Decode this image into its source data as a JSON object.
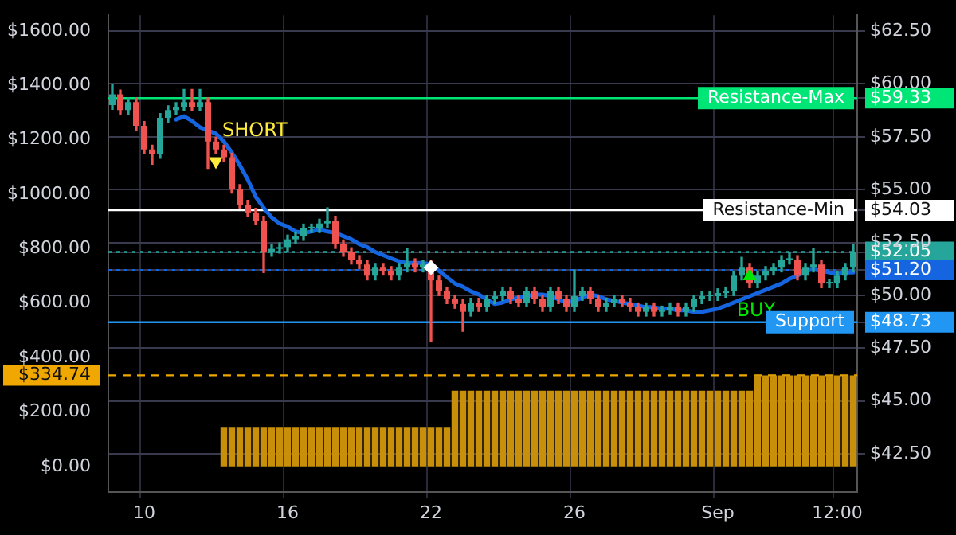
{
  "chart_data": {
    "type": "candlestick",
    "categories": [
      null,
      null,
      null,
      null,
      "10",
      null,
      null,
      null,
      null,
      null,
      null,
      null,
      null,
      null,
      null,
      null,
      null,
      null,
      null,
      null,
      null,
      null,
      "16",
      null,
      null,
      null,
      null,
      null,
      null,
      null,
      null,
      null,
      null,
      null,
      null,
      null,
      null,
      null,
      null,
      null,
      "22",
      null,
      null,
      null,
      null,
      null,
      null,
      null,
      null,
      null,
      null,
      null,
      null,
      null,
      null,
      null,
      null,
      null,
      "26",
      null,
      null,
      null,
      null,
      null,
      null,
      null,
      null,
      null,
      null,
      null,
      null,
      null,
      null,
      null,
      null,
      null,
      "Sep",
      null,
      null,
      null,
      null,
      null,
      null,
      null,
      null,
      null,
      null,
      null,
      null,
      null,
      null,
      "12:00",
      null,
      null
    ],
    "series": [
      {
        "type": "bar",
        "axis": "y",
        "color": "#c8900a",
        "values": [
          0,
          0,
          0,
          0,
          0,
          0,
          0,
          0,
          0,
          0,
          0,
          0,
          0,
          0,
          145,
          145,
          145,
          145,
          145,
          145,
          145,
          145,
          145,
          145,
          145,
          145,
          145,
          145,
          145,
          145,
          145,
          145,
          145,
          145,
          145,
          145,
          145,
          145,
          145,
          145,
          145,
          145,
          145,
          278,
          278,
          278,
          278,
          278,
          278,
          278,
          278,
          278,
          278,
          278,
          278,
          278,
          278,
          278,
          278,
          278,
          278,
          278,
          278,
          278,
          278,
          278,
          278,
          278,
          278,
          278,
          278,
          278,
          278,
          278,
          278,
          278,
          278,
          278,
          278,
          278,
          278,
          334.74,
          334.74,
          334.74,
          334.74,
          334.74,
          334.74,
          334.74,
          334.74,
          334.74,
          334.74,
          334.74,
          334.74,
          334.74
        ]
      },
      {
        "axis": "y2",
        "ohlc": [
          [
            59.0,
            59.96,
            58.8,
            59.51
          ],
          [
            59.51,
            59.71,
            58.57,
            58.77
          ],
          [
            58.77,
            59.34,
            58.57,
            59.14
          ],
          [
            59.14,
            59.34,
            57.82,
            58.02
          ],
          [
            58.02,
            58.22,
            56.7,
            56.9
          ],
          [
            56.9,
            57.1,
            56.2,
            56.68
          ],
          [
            56.68,
            58.6,
            56.48,
            58.4
          ],
          [
            58.4,
            58.97,
            58.2,
            58.77
          ],
          [
            58.77,
            59.12,
            58.57,
            58.92
          ],
          [
            58.92,
            59.74,
            58.72,
            59.14
          ],
          [
            59.14,
            59.74,
            58.72,
            58.92
          ],
          [
            58.92,
            59.74,
            58.72,
            59.14
          ],
          [
            59.14,
            59.34,
            56.0,
            57.28
          ],
          [
            57.28,
            57.48,
            56.7,
            56.9
          ],
          [
            56.9,
            57.1,
            56.33,
            56.53
          ],
          [
            56.53,
            56.73,
            54.84,
            55.04
          ],
          [
            55.04,
            55.24,
            54.09,
            54.29
          ],
          [
            54.29,
            54.49,
            53.72,
            53.92
          ],
          [
            53.92,
            54.12,
            53.34,
            53.54
          ],
          [
            53.54,
            53.74,
            51.08,
            52.05
          ],
          [
            52.05,
            52.4,
            51.85,
            52.2
          ],
          [
            52.2,
            52.48,
            52.0,
            52.28
          ],
          [
            52.28,
            52.85,
            52.08,
            52.65
          ],
          [
            52.65,
            53.0,
            52.45,
            52.8
          ],
          [
            52.8,
            53.37,
            52.6,
            53.17
          ],
          [
            53.17,
            53.37,
            52.97,
            53.17
          ],
          [
            53.17,
            53.6,
            52.97,
            53.4
          ],
          [
            53.4,
            54.14,
            53.2,
            53.54
          ],
          [
            53.54,
            53.74,
            52.22,
            52.42
          ],
          [
            52.42,
            52.62,
            51.85,
            52.05
          ],
          [
            52.05,
            52.25,
            51.48,
            51.68
          ],
          [
            51.68,
            51.88,
            51.26,
            51.46
          ],
          [
            51.46,
            51.66,
            50.73,
            50.93
          ],
          [
            50.93,
            51.51,
            50.73,
            51.31
          ],
          [
            51.31,
            51.51,
            50.96,
            51.16
          ],
          [
            51.16,
            51.36,
            50.73,
            50.93
          ],
          [
            50.93,
            51.51,
            50.73,
            51.31
          ],
          [
            51.31,
            52.2,
            51.11,
            51.53
          ],
          [
            51.53,
            51.73,
            51.11,
            51.31
          ],
          [
            51.31,
            51.66,
            51.11,
            51.46
          ],
          [
            51.46,
            51.66,
            47.8,
            50.71
          ],
          [
            50.71,
            50.91,
            49.99,
            50.19
          ],
          [
            50.19,
            50.39,
            49.61,
            49.81
          ],
          [
            49.81,
            50.01,
            49.39,
            49.59
          ],
          [
            49.59,
            49.79,
            48.3,
            49.22
          ],
          [
            49.22,
            49.86,
            49.02,
            49.66
          ],
          [
            49.66,
            49.86,
            49.24,
            49.44
          ],
          [
            49.44,
            50.01,
            49.24,
            49.81
          ],
          [
            49.81,
            50.16,
            49.61,
            49.96
          ],
          [
            49.96,
            50.39,
            49.76,
            50.19
          ],
          [
            50.19,
            50.39,
            49.61,
            49.81
          ],
          [
            49.81,
            50.01,
            49.46,
            49.66
          ],
          [
            49.66,
            50.39,
            49.46,
            50.19
          ],
          [
            50.19,
            50.39,
            49.61,
            49.81
          ],
          [
            49.81,
            50.01,
            49.24,
            49.44
          ],
          [
            49.44,
            50.39,
            49.24,
            50.19
          ],
          [
            50.19,
            50.39,
            49.61,
            49.81
          ],
          [
            49.81,
            50.01,
            49.24,
            49.44
          ],
          [
            49.44,
            51.2,
            49.24,
            49.96
          ],
          [
            49.96,
            50.39,
            49.76,
            50.19
          ],
          [
            50.19,
            50.39,
            49.61,
            49.81
          ],
          [
            49.81,
            50.01,
            49.24,
            49.44
          ],
          [
            49.44,
            49.86,
            49.24,
            49.66
          ],
          [
            49.66,
            50.01,
            49.46,
            49.81
          ],
          [
            49.81,
            50.01,
            49.46,
            49.66
          ],
          [
            49.66,
            49.86,
            49.24,
            49.44
          ],
          [
            49.44,
            49.64,
            49.02,
            49.22
          ],
          [
            49.22,
            49.64,
            49.02,
            49.44
          ],
          [
            49.44,
            49.64,
            49.02,
            49.22
          ],
          [
            49.22,
            49.49,
            49.02,
            49.29
          ],
          [
            49.29,
            49.64,
            49.09,
            49.44
          ],
          [
            49.44,
            49.64,
            49.02,
            49.22
          ],
          [
            49.22,
            49.64,
            49.02,
            49.44
          ],
          [
            49.44,
            50.01,
            49.24,
            49.81
          ],
          [
            49.81,
            50.16,
            49.61,
            49.96
          ],
          [
            49.96,
            50.16,
            49.76,
            49.96
          ],
          [
            49.96,
            50.31,
            49.76,
            50.11
          ],
          [
            50.11,
            50.39,
            49.91,
            50.19
          ],
          [
            50.19,
            51.13,
            49.99,
            50.93
          ],
          [
            50.93,
            51.8,
            50.73,
            51.31
          ],
          [
            51.31,
            51.51,
            50.36,
            50.56
          ],
          [
            50.56,
            51.13,
            50.36,
            50.93
          ],
          [
            50.93,
            51.36,
            50.73,
            51.16
          ],
          [
            51.16,
            51.51,
            50.96,
            51.31
          ],
          [
            51.31,
            51.88,
            51.11,
            51.68
          ],
          [
            51.68,
            52.05,
            51.48,
            51.68
          ],
          [
            51.68,
            51.88,
            50.73,
            50.93
          ],
          [
            50.93,
            51.51,
            50.73,
            51.31
          ],
          [
            51.31,
            52.2,
            51.11,
            51.46
          ],
          [
            51.46,
            51.66,
            50.36,
            50.56
          ],
          [
            50.56,
            50.76,
            50.36,
            50.56
          ],
          [
            50.56,
            51.13,
            50.36,
            50.93
          ],
          [
            50.93,
            51.51,
            50.73,
            51.31
          ],
          [
            51.31,
            52.4,
            51.11,
            52.05
          ]
        ],
        "colors": [
          "#26a69a",
          "#ef5350",
          "#26a69a",
          "#ef5350",
          "#ef5350",
          "#ef5350",
          "#26a69a",
          "#26a69a",
          "#26a69a",
          "#26a69a",
          "#ef5350",
          "#26a69a",
          "#ef5350",
          "#ef5350",
          "#ef5350",
          "#ef5350",
          "#ef5350",
          "#ef5350",
          "#ef5350",
          "#ef5350",
          "#26a69a",
          "#26a69a",
          "#26a69a",
          "#26a69a",
          "#26a69a",
          "#26a69a",
          "#26a69a",
          "#26a69a",
          "#ef5350",
          "#ef5350",
          "#ef5350",
          "#ef5350",
          "#ef5350",
          "#26a69a",
          "#ef5350",
          "#ef5350",
          "#26a69a",
          "#26a69a",
          "#ef5350",
          "#26a69a",
          "#ef5350",
          "#ef5350",
          "#ef5350",
          "#ef5350",
          "#ef5350",
          "#26a69a",
          "#ef5350",
          "#26a69a",
          "#26a69a",
          "#26a69a",
          "#ef5350",
          "#ef5350",
          "#26a69a",
          "#ef5350",
          "#ef5350",
          "#26a69a",
          "#ef5350",
          "#ef5350",
          "#26a69a",
          "#26a69a",
          "#ef5350",
          "#ef5350",
          "#26a69a",
          "#26a69a",
          "#ef5350",
          "#ef5350",
          "#ef5350",
          "#26a69a",
          "#ef5350",
          "#26a69a",
          "#26a69a",
          "#ef5350",
          "#26a69a",
          "#26a69a",
          "#26a69a",
          "#26a69a",
          "#26a69a",
          "#26a69a",
          "#26a69a",
          "#26a69a",
          "#ef5350",
          "#26a69a",
          "#26a69a",
          "#26a69a",
          "#26a69a",
          "#26a69a",
          "#ef5350",
          "#26a69a",
          "#26a69a",
          "#ef5350",
          "#26a69a",
          "#26a69a",
          "#26a69a",
          "#26a69a"
        ]
      },
      {
        "type": "line",
        "axis": "y2",
        "color": "#1565e0",
        "values": [
          null,
          null,
          null,
          null,
          null,
          null,
          null,
          null,
          58.32,
          58.47,
          58.25,
          57.95,
          57.8,
          57.65,
          57.28,
          56.75,
          56.16,
          55.48,
          54.66,
          54.14,
          53.69,
          53.4,
          53.25,
          53.02,
          52.95,
          53.02,
          53.1,
          53.02,
          52.95,
          52.8,
          52.65,
          52.42,
          52.28,
          52.05,
          51.9,
          51.75,
          51.61,
          51.53,
          51.53,
          51.53,
          51.46,
          51.16,
          50.86,
          50.56,
          50.41,
          50.19,
          50.04,
          49.81,
          49.59,
          49.66,
          49.81,
          49.89,
          49.96,
          50.04,
          50.04,
          49.96,
          49.81,
          49.66,
          49.74,
          49.89,
          50.04,
          49.96,
          49.81,
          49.74,
          49.66,
          49.59,
          49.51,
          49.44,
          49.44,
          49.37,
          49.37,
          49.29,
          49.29,
          49.22,
          49.22,
          49.29,
          49.37,
          49.51,
          49.66,
          49.81,
          49.96,
          50.11,
          50.26,
          50.41,
          50.56,
          50.78,
          50.93,
          51.16,
          51.23,
          51.16,
          51.08,
          51.01,
          51.08,
          51.08
        ]
      },
      {
        "type": "scatter",
        "axis": "y2",
        "name": "SHORT",
        "color": "#ffeb3b",
        "marker": "triangle",
        "values": [
          null,
          null,
          null,
          null,
          null,
          null,
          null,
          null,
          null,
          null,
          null,
          null,
          null,
          56.35,
          null,
          null,
          null,
          null,
          null,
          null,
          null,
          null,
          null,
          null,
          null,
          null,
          null,
          null,
          null,
          null,
          null,
          null,
          null,
          null,
          null,
          null,
          null,
          null,
          null,
          null,
          null,
          null,
          null,
          null,
          null,
          null,
          null,
          null,
          null,
          null,
          null,
          null,
          null,
          null,
          null,
          null,
          null,
          null,
          null,
          null,
          null,
          null,
          null,
          null,
          null,
          null,
          null,
          null,
          null,
          null,
          null,
          null,
          null,
          null,
          null,
          null,
          null,
          null,
          null,
          null,
          null,
          null,
          null,
          null,
          null,
          null,
          null,
          null,
          null,
          null,
          null,
          null,
          null,
          null
        ]
      },
      {
        "type": "scatter",
        "axis": "y2",
        "name": "BUY",
        "color": "#00e600",
        "marker": "triangle",
        "values": [
          null,
          null,
          null,
          null,
          null,
          null,
          null,
          null,
          null,
          null,
          null,
          null,
          null,
          null,
          null,
          null,
          null,
          null,
          null,
          null,
          null,
          null,
          null,
          null,
          null,
          null,
          null,
          null,
          null,
          null,
          null,
          null,
          null,
          null,
          null,
          null,
          null,
          null,
          null,
          null,
          null,
          null,
          null,
          null,
          null,
          null,
          null,
          null,
          null,
          null,
          null,
          null,
          null,
          null,
          null,
          null,
          null,
          null,
          null,
          null,
          null,
          null,
          null,
          null,
          null,
          null,
          null,
          null,
          null,
          null,
          null,
          null,
          null,
          null,
          null,
          null,
          null,
          null,
          null,
          null,
          50.9,
          null,
          null,
          null,
          null,
          null,
          null,
          null,
          null,
          null,
          null,
          null,
          null,
          null
        ]
      },
      {
        "type": "scatter",
        "axis": "y2",
        "color": "#ffffff",
        "marker": "diamond",
        "values": [
          null,
          null,
          null,
          null,
          null,
          null,
          null,
          null,
          null,
          null,
          null,
          null,
          null,
          null,
          null,
          null,
          null,
          null,
          null,
          null,
          null,
          null,
          null,
          null,
          null,
          null,
          null,
          null,
          null,
          null,
          null,
          null,
          null,
          null,
          null,
          null,
          null,
          null,
          null,
          null,
          51.31,
          null,
          null,
          null,
          null,
          null,
          null,
          null,
          null,
          null,
          null,
          null,
          null,
          null,
          null,
          null,
          null,
          null,
          null,
          null,
          null,
          null,
          null,
          null,
          null,
          null,
          null,
          null,
          null,
          null,
          null,
          null,
          null,
          null,
          null,
          null,
          null,
          null,
          null,
          null,
          null,
          null,
          null,
          null,
          null,
          null,
          null,
          null,
          null,
          null,
          null,
          null,
          null,
          null
        ]
      }
    ],
    "ylim": [
      -93,
      1658
    ],
    "yticks": [
      {
        "value": 0,
        "label": "$0.00"
      },
      {
        "value": 200,
        "label": "$200.00"
      },
      {
        "value": 334.74,
        "label": "$334.74"
      },
      {
        "value": 400,
        "label": "$400.00"
      },
      {
        "value": 600,
        "label": "$600.00"
      },
      {
        "value": 800,
        "label": "$800.00"
      },
      {
        "value": 1000,
        "label": "$1000.00"
      },
      {
        "value": 1200,
        "label": "$1200.00"
      },
      {
        "value": 1400,
        "label": "$1400.00"
      },
      {
        "value": 1600,
        "label": "$1600.00"
      }
    ],
    "y2lim": [
      40.71,
      63.25
    ],
    "y2ticks": [
      {
        "value": 42.5,
        "label": "$42.50"
      },
      {
        "value": 45,
        "label": "$45.00"
      },
      {
        "value": 47.5,
        "label": "$47.50"
      },
      {
        "value": 48.73,
        "label": "$48.73"
      },
      {
        "value": 50,
        "label": "$50.00"
      },
      {
        "value": 51.2,
        "label": "$51.20"
      },
      {
        "value": 52.05,
        "label": "$52.05"
      },
      {
        "value": 52.5,
        "label": "$52.50"
      },
      {
        "value": 54.03,
        "label": "$54.03"
      },
      {
        "value": 55,
        "label": "$55.00"
      },
      {
        "value": 57.5,
        "label": "$57.50"
      },
      {
        "value": 59.33,
        "label": "$59.33"
      },
      {
        "value": 60,
        "label": "$60.00"
      },
      {
        "value": 62.5,
        "label": "$62.50"
      }
    ],
    "ref_lines": [
      {
        "axis": "y2",
        "value": 59.33,
        "label": "Resistance-Max",
        "color": "#00e676",
        "line_style": "solid"
      },
      {
        "axis": "y2",
        "value": 54.03,
        "label": "Resistance-Min",
        "color": "#ffffff",
        "line_style": "solid"
      },
      {
        "axis": "y2",
        "value": 52.05,
        "color": "#26a69a",
        "line_style": "dotted"
      },
      {
        "axis": "y2",
        "value": 51.2,
        "color": "#1565e0",
        "line_style": "dotted"
      },
      {
        "axis": "y2",
        "value": 48.73,
        "label": "Support",
        "color": "#2196f3",
        "line_style": "solid"
      },
      {
        "axis": "y",
        "value": 334.74,
        "color": "#f0a800",
        "line_style": "dashed"
      }
    ],
    "grid": true,
    "legend": false
  }
}
